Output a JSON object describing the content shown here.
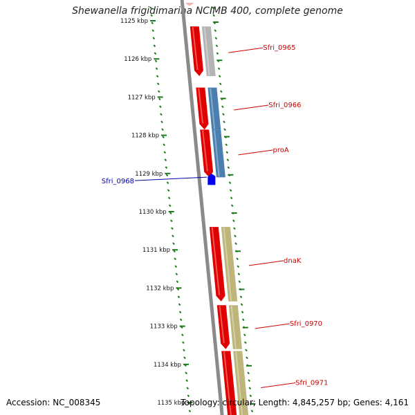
{
  "title": "Shewanella frigidimarina NCIMB 400, complete genome",
  "accession": "Accession: NC_008345",
  "topology": "Topology: circular; Length: 4,845,257 bp; Genes: 4,161",
  "colors": {
    "backbone": "#8a8a8a",
    "tick": "#1a7a1a",
    "gene_red": "#e00000",
    "gene_blue": "#0000ee",
    "feat_gray": "#b4b4b4",
    "feat_steelblue": "#4a7fb0",
    "feat_olive": "#bdb57a",
    "label_red": "#cc0000",
    "label_blue": "#0000aa"
  },
  "ruler": {
    "unit": "kbp",
    "ticks": [
      {
        "kbp": 1125,
        "label": "1125 kbp"
      },
      {
        "kbp": 1126,
        "label": "1126 kbp"
      },
      {
        "kbp": 1127,
        "label": "1127 kbp"
      },
      {
        "kbp": 1128,
        "label": "1128 kbp"
      },
      {
        "kbp": 1129,
        "label": "1129 kbp"
      },
      {
        "kbp": 1130,
        "label": "1130 kbp"
      },
      {
        "kbp": 1131,
        "label": "1131 kbp"
      },
      {
        "kbp": 1132,
        "label": "1132 kbp"
      },
      {
        "kbp": 1133,
        "label": "1133 kbp"
      },
      {
        "kbp": 1134,
        "label": "1134 kbp"
      },
      {
        "kbp": 1135,
        "label": "1135 kbp"
      }
    ]
  },
  "genes": [
    {
      "name": "Sfri_0965",
      "start": 1125.15,
      "end": 1126.45,
      "strand": "reverse",
      "feature": "gray"
    },
    {
      "name": "Sfri_0966",
      "start": 1126.75,
      "end": 1127.85,
      "strand": "reverse",
      "feature": "steelblue"
    },
    {
      "name": "proA",
      "start": 1127.85,
      "end": 1129.1,
      "strand": "reverse",
      "feature": "steelblue"
    },
    {
      "name": "Sfri_0968",
      "start": 1129.0,
      "end": 1129.3,
      "strand": "forward",
      "feature": "none"
    },
    {
      "name": "dnaK",
      "start": 1130.4,
      "end": 1132.35,
      "strand": "reverse",
      "feature": "olive"
    },
    {
      "name": "Sfri_0970",
      "start": 1132.45,
      "end": 1133.6,
      "strand": "reverse",
      "feature": "olive"
    },
    {
      "name": "Sfri_0971",
      "start": 1133.65,
      "end": 1135.5,
      "strand": "reverse",
      "feature": "olive"
    }
  ]
}
